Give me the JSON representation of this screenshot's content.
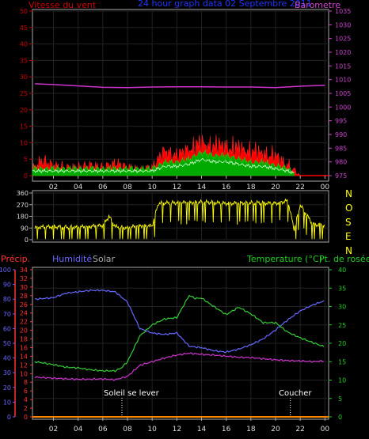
{
  "chart_data": [
    {
      "type": "line",
      "title": "24 hour graph data  02 Septembre 2011",
      "left_axis_label": "Vitesse du vent",
      "right_axis_label": "Barometre",
      "x_ticks": [
        "02",
        "04",
        "06",
        "08",
        "10",
        "12",
        "14",
        "16",
        "18",
        "20",
        "22",
        "00"
      ],
      "left_ticks": [
        "0",
        "5",
        "10",
        "15",
        "20",
        "25",
        "30",
        "35",
        "40",
        "45",
        "50"
      ],
      "right_ticks": [
        "975",
        "980",
        "985",
        "990",
        "995",
        "1000",
        "1005",
        "1010",
        "1015",
        "1020",
        "1025",
        "1030",
        "1035"
      ],
      "ylim_left": [
        0,
        50
      ],
      "ylim_right": [
        975,
        1035
      ],
      "colors": {
        "gust": "#ff0000",
        "wind": "#00c000",
        "baro": "#cc33cc",
        "axis_left": "#cc0000",
        "axis_right": "#cc44cc",
        "title": "#2233ff"
      },
      "series": [
        {
          "key": "baro",
          "x": [
            0.5,
            2,
            4,
            6,
            8,
            10,
            12,
            14,
            16,
            18,
            20,
            22,
            24
          ],
          "y": [
            1008.5,
            1008.2,
            1007.7,
            1007.2,
            1007.1,
            1007.3,
            1007.4,
            1007.4,
            1007.3,
            1007.3,
            1007.1,
            1007.6,
            1007.9
          ]
        },
        {
          "key": "gust",
          "x": [
            0.5,
            1,
            2,
            3,
            4,
            5,
            6,
            7,
            8,
            9,
            10,
            11,
            12,
            13,
            14,
            15,
            16,
            17,
            18,
            19,
            20,
            21,
            22,
            23,
            24
          ],
          "y": [
            3,
            6,
            4,
            3,
            3,
            4,
            3,
            5,
            3,
            2,
            3,
            10,
            8,
            11,
            13,
            12,
            12,
            11,
            10,
            9,
            8,
            4,
            0,
            0,
            0
          ]
        },
        {
          "key": "wind",
          "x": [
            0.5,
            2,
            4,
            6,
            8,
            10,
            11,
            12,
            13,
            14,
            15,
            16,
            17,
            18,
            19,
            20,
            21,
            22,
            24
          ],
          "y": [
            2,
            2,
            2,
            2,
            2,
            2,
            4,
            4,
            5,
            7,
            6,
            6,
            5,
            4,
            4,
            3,
            2,
            0,
            0
          ]
        }
      ]
    },
    {
      "type": "scatter",
      "title": "",
      "ylabel": "",
      "side_letters": [
        "N",
        "O",
        "S",
        "E",
        "N"
      ],
      "y_ticks": [
        "0",
        "90",
        "180",
        "270",
        "360"
      ],
      "ylim": [
        0,
        360
      ],
      "color": "#ffff00",
      "x": [
        0.5,
        2,
        4,
        6,
        6.5,
        7,
        8,
        9,
        10,
        10.5,
        12,
        14,
        16,
        18,
        20,
        21,
        21.5,
        22,
        23,
        24
      ],
      "y": [
        95,
        100,
        95,
        110,
        180,
        100,
        90,
        110,
        105,
        280,
        285,
        290,
        280,
        285,
        280,
        300,
        80,
        270,
        120,
        110
      ]
    },
    {
      "type": "line",
      "title": "",
      "labels": {
        "precip": "Précip.",
        "humidity": "Humidité",
        "solar": "Solar",
        "temperature": "Temperature (°C)",
        "dewpoint": "Pt. de rosée"
      },
      "precip_ticks": [
        "0",
        "2",
        "4",
        "6",
        "8",
        "10",
        "12",
        "14",
        "16",
        "18",
        "20",
        "22",
        "24",
        "26",
        "28",
        "30",
        "32",
        "34"
      ],
      "humidity_ticks": [
        "0",
        "10",
        "20",
        "30",
        "40",
        "50",
        "60",
        "70",
        "80",
        "90",
        "100"
      ],
      "temp_ticks": [
        "0",
        "5",
        "10",
        "15",
        "20",
        "25",
        "30",
        "35",
        "40"
      ],
      "ylim_humidity": [
        0,
        100
      ],
      "ylim_temp": [
        0,
        40
      ],
      "annotations": [
        {
          "text": "Soleil se lever",
          "x": 7.55
        },
        {
          "text": "Coucher",
          "x": 21.2
        }
      ],
      "colors": {
        "precip": "#ff3333",
        "humidity": "#6666ff",
        "solar": "#aaaaaa",
        "temp": "#33cc33",
        "dew": "#cc33cc",
        "temp_axis": "#22cc22"
      },
      "series": [
        {
          "key": "humidity",
          "x": [
            0.5,
            2,
            3,
            4,
            5,
            6,
            7,
            8,
            9,
            10,
            11,
            12,
            13,
            14,
            15,
            16,
            17,
            18,
            19,
            20,
            21,
            22,
            23,
            24
          ],
          "y": [
            80,
            81,
            84,
            85,
            86,
            86,
            85,
            78,
            60,
            57,
            56,
            57,
            48,
            47,
            45,
            44,
            46,
            49,
            53,
            59,
            66,
            72,
            76,
            79
          ]
        },
        {
          "key": "temp",
          "x": [
            0.5,
            2,
            3,
            4,
            5,
            6,
            7,
            7.5,
            8,
            9,
            10,
            11,
            12,
            13,
            13.5,
            14,
            15,
            16,
            17,
            18,
            19,
            20,
            21,
            22,
            23,
            24
          ],
          "y": [
            15,
            14.2,
            13.5,
            13.3,
            12.8,
            12.5,
            12.5,
            13.3,
            15,
            22,
            25,
            26.6,
            27,
            33,
            32.2,
            32.3,
            30,
            27.8,
            29.8,
            28,
            25.6,
            25.6,
            23,
            21.5,
            20.2,
            19
          ]
        },
        {
          "key": "dew",
          "x": [
            0.5,
            2,
            4,
            6,
            7,
            8,
            9,
            10,
            11,
            12,
            13,
            14,
            15,
            16,
            17,
            18,
            19,
            20,
            21,
            22,
            23,
            24
          ],
          "y": [
            10.8,
            10.5,
            10.2,
            10.3,
            10.1,
            11,
            14,
            15,
            16,
            16.8,
            17.3,
            17,
            16.8,
            16.5,
            16.2,
            16.1,
            15.8,
            15.5,
            15.3,
            15.2,
            15,
            15.2
          ]
        },
        {
          "key": "precip",
          "x": [
            0.5,
            24
          ],
          "y": [
            0,
            0
          ]
        }
      ]
    }
  ]
}
